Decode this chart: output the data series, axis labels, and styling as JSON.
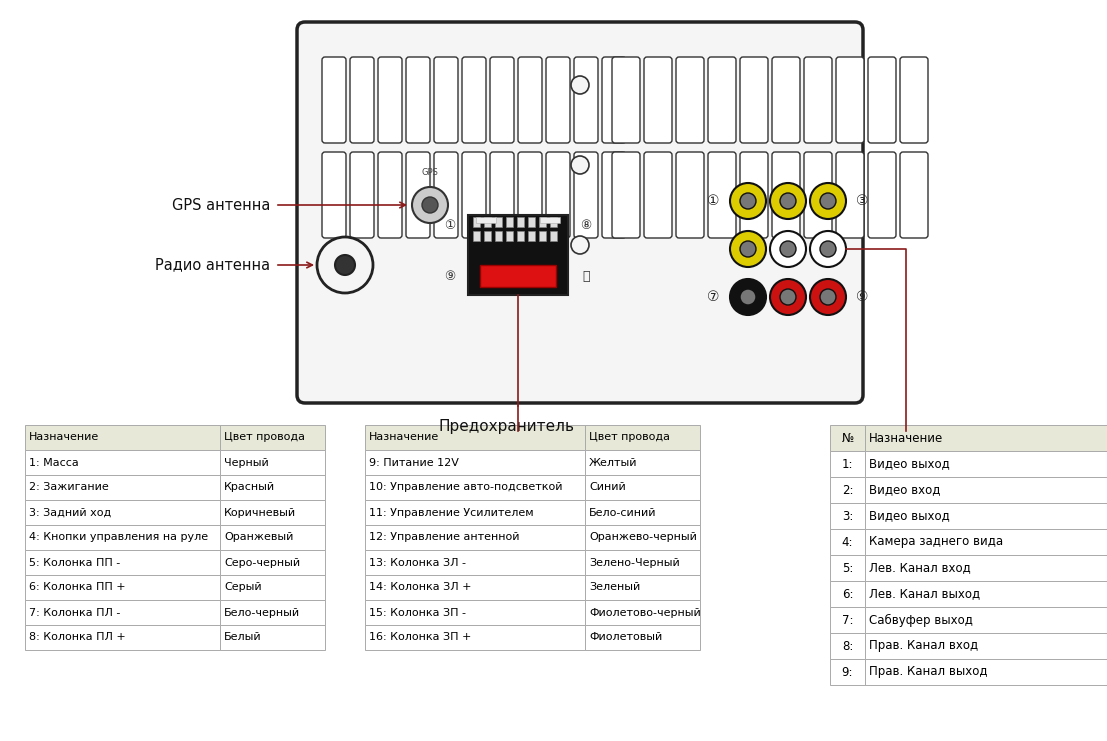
{
  "bg_color": "#ffffff",
  "table1_header": [
    "Назначение",
    "Цвет провода"
  ],
  "table1_rows": [
    [
      "1: Масса",
      "Черный"
    ],
    [
      "2: Зажигание",
      "Красный"
    ],
    [
      "3: Задний ход",
      "Коричневый"
    ],
    [
      "4: Кнопки управления на руле",
      "Оранжевый"
    ],
    [
      "5: Колонка ПП -",
      "Серо-черный"
    ],
    [
      "6: Колонка ПП +",
      "Серый"
    ],
    [
      "7: Колонка ПЛ -",
      "Бело-черный"
    ],
    [
      "8: Колонка ПЛ +",
      "Белый"
    ]
  ],
  "table2_header": [
    "Назначение",
    "Цвет провода"
  ],
  "table2_rows": [
    [
      "9: Питание 12V",
      "Желтый"
    ],
    [
      "10: Управление авто-подсветкой",
      "Синий"
    ],
    [
      "11: Управление Усилителем",
      "Бело-синий"
    ],
    [
      "12: Управление антенной",
      "Оранжево-черный"
    ],
    [
      "13: Колонка ЗЛ -",
      "Зелено-Черный"
    ],
    [
      "14: Колонка ЗЛ +",
      "Зеленый"
    ],
    [
      "15: Колонка ЗП -",
      "Фиолетово-черный"
    ],
    [
      "16: Колонка ЗП +",
      "Фиолетовый"
    ]
  ],
  "table3_header": [
    "№",
    "Назначение"
  ],
  "table3_rows": [
    [
      "1:",
      "Видео выход"
    ],
    [
      "2:",
      "Видео вход"
    ],
    [
      "3:",
      "Видео выход"
    ],
    [
      "4:",
      "Камера заднего вида"
    ],
    [
      "5:",
      "Лев. Канал вход"
    ],
    [
      "6:",
      "Лев. Канал выход"
    ],
    [
      "7:",
      "Сабвуфер выход"
    ],
    [
      "8:",
      "Прав. Канал вход"
    ],
    [
      "9:",
      "Прав. Канал выход"
    ]
  ],
  "label_gps": "GPS антенна",
  "label_radio": "Радио антенна",
  "label_fuse": "Предохранитель",
  "header_color": "#e8e8d8",
  "row_color": "#ffffff",
  "border_color": "#aaaaaa",
  "text_color": "#000000",
  "body_color": "#f5f5f5",
  "body_border": "#222222",
  "slot_color": "#ffffff",
  "slot_border": "#333333",
  "rca_border": "#111111",
  "conn_border": "#111111",
  "conn_bg": "#111111",
  "red_line_color": "#8b1a1a"
}
